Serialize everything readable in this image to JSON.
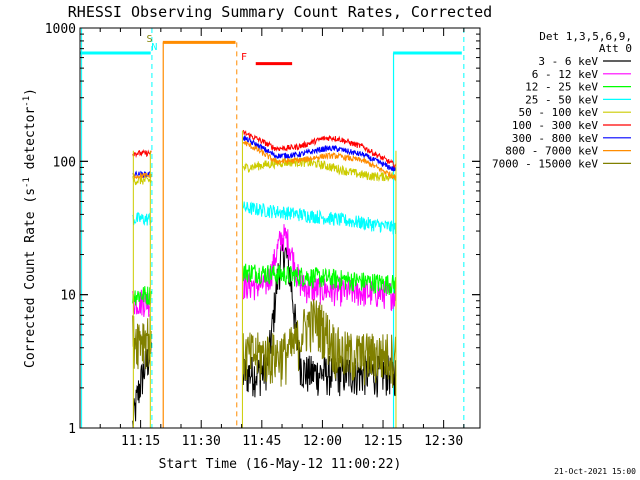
{
  "chart_data": {
    "type": "line",
    "title": "RHESSI Observing Summary Count Rates, Corrected",
    "xlabel": "Start Time (16-May-12 11:00:22)",
    "ylabel_main": "Corrected Count Rate (s",
    "ylabel_sup1": "-1",
    "ylabel_mid": " detector",
    "ylabel_sup2": "-1",
    "ylabel_end": ")",
    "yscale": "log",
    "ylim": [
      1,
      1000
    ],
    "xlim_minutes": [
      0,
      99
    ],
    "x_ticks": [
      {
        "t": 15,
        "label": "11:15"
      },
      {
        "t": 30,
        "label": "11:30"
      },
      {
        "t": 45,
        "label": "11:45"
      },
      {
        "t": 60,
        "label": "12:00"
      },
      {
        "t": 75,
        "label": "12:15"
      },
      {
        "t": 90,
        "label": "12:30"
      }
    ],
    "y_ticks": [
      {
        "v": 1,
        "label": "1"
      },
      {
        "v": 10,
        "label": "10"
      },
      {
        "v": 100,
        "label": "100"
      },
      {
        "v": 1000,
        "label": "1000"
      }
    ],
    "legend_header": [
      "Det 1,3,5,6,9,",
      "Att 0"
    ],
    "series": [
      {
        "name": "3 - 6 keV",
        "color": "#000000"
      },
      {
        "name": "6 - 12 keV",
        "color": "#ff00ff"
      },
      {
        "name": "12 - 25 keV",
        "color": "#00ff00"
      },
      {
        "name": "25 - 50 keV",
        "color": "#00ffff"
      },
      {
        "name": "50 - 100 keV",
        "color": "#cccc00"
      },
      {
        "name": "100 - 300 keV",
        "color": "#ff0000"
      },
      {
        "name": "300 - 800 keV",
        "color": "#0000ff"
      },
      {
        "name": "800 - 7000 keV",
        "color": "#ff8c00"
      },
      {
        "name": "7000 - 15000 keV",
        "color": "#808000"
      }
    ],
    "flags": [
      {
        "label": "S",
        "color": "#808000",
        "t": 17.2
      },
      {
        "label": "N",
        "color": "#00ffff",
        "t": 18.4
      },
      {
        "label": "F",
        "color": "#ff0000",
        "t": 40.6
      }
    ],
    "footer_date": "21-Oct-2021 15:00"
  }
}
